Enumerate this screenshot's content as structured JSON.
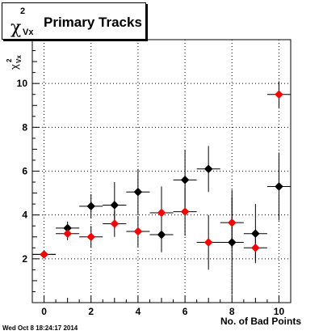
{
  "title": {
    "symbol": "χ",
    "superscript": "2",
    "subscript": "Vx",
    "text": "Primary Tracks"
  },
  "timestamp": "Wed Oct  8 18:24:17 2014",
  "chart_data": {
    "type": "scatter",
    "title": "χ²Vx Primary Tracks",
    "xlabel": "No. of Bad Points",
    "ylabel": "χ²Vx",
    "xlim": [
      -0.5,
      10.5
    ],
    "ylim": [
      0,
      12
    ],
    "xticks": [
      0,
      2,
      4,
      6,
      8,
      10
    ],
    "yticks": [
      2,
      4,
      6,
      8,
      10
    ],
    "grid": true,
    "series": [
      {
        "color": "#000000",
        "marker": "diamond",
        "points": [
          {
            "x": 0,
            "y": 2.2,
            "xerr": 0.5,
            "yerr": 0.15
          },
          {
            "x": 1,
            "y": 3.4,
            "xerr": 0.5,
            "yerr": 0.3
          },
          {
            "x": 2,
            "y": 4.4,
            "xerr": 0.5,
            "yerr": 0.55
          },
          {
            "x": 3,
            "y": 4.45,
            "xerr": 0.5,
            "yerr": 1.05
          },
          {
            "x": 4,
            "y": 5.05,
            "xerr": 0.5,
            "yerr": 1.05
          },
          {
            "x": 5,
            "y": 3.1,
            "xerr": 0.5,
            "yerr": 0.8
          },
          {
            "x": 6,
            "y": 5.6,
            "xerr": 0.5,
            "yerr": 1.35
          },
          {
            "x": 7,
            "y": 6.1,
            "xerr": 0.5,
            "yerr": 1.05
          },
          {
            "x": 8,
            "y": 2.75,
            "xerr": 0.5,
            "yerr": 2.4
          },
          {
            "x": 9,
            "y": 3.15,
            "xerr": 0.5,
            "yerr": 1.35
          },
          {
            "x": 10,
            "y": 5.3,
            "xerr": 0.5,
            "yerr": 1.55
          }
        ]
      },
      {
        "color": "#ff0000",
        "marker": "diamond",
        "points": [
          {
            "x": 0,
            "y": 2.2,
            "xerr": 0.5,
            "yerr": 0.1
          },
          {
            "x": 1,
            "y": 3.15,
            "xerr": 0.5,
            "yerr": 0.3
          },
          {
            "x": 2,
            "y": 3.0,
            "xerr": 0.5,
            "yerr": 0.5
          },
          {
            "x": 3,
            "y": 3.6,
            "xerr": 0.5,
            "yerr": 0.6
          },
          {
            "x": 4,
            "y": 3.25,
            "xerr": 0.5,
            "yerr": 0.7
          },
          {
            "x": 5,
            "y": 4.1,
            "xerr": 0.5,
            "yerr": 1.2
          },
          {
            "x": 6,
            "y": 4.15,
            "xerr": 0.5,
            "yerr": 1.1
          },
          {
            "x": 7,
            "y": 2.75,
            "xerr": 0.5,
            "yerr": 1.25
          },
          {
            "x": 8,
            "y": 3.65,
            "xerr": 0.5,
            "yerr": 1.15
          },
          {
            "x": 9,
            "y": 2.5,
            "xerr": 0.5,
            "yerr": 0.6
          },
          {
            "x": 10,
            "y": 9.5,
            "xerr": 0.5,
            "yerr": 0.6
          }
        ]
      }
    ]
  }
}
